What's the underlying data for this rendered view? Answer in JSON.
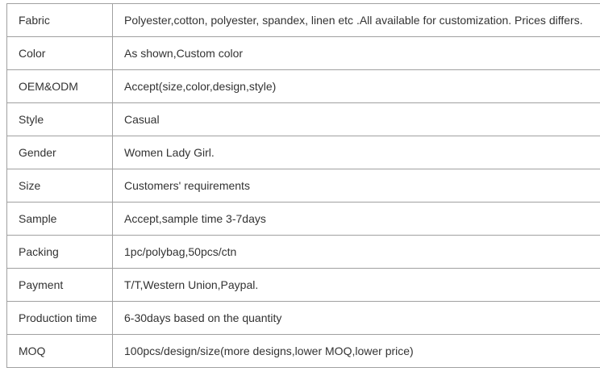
{
  "rows": [
    {
      "label": "Fabric",
      "value": "Polyester,cotton, polyester, spandex, linen etc .All available for customization. Prices differs."
    },
    {
      "label": "Color",
      "value": "As shown,Custom color"
    },
    {
      "label": "OEM&ODM",
      "value": "Accept(size,color,design,style)"
    },
    {
      "label": "Style",
      "value": "Casual"
    },
    {
      "label": "Gender",
      "value": "Women Lady Girl."
    },
    {
      "label": "Size",
      "value": "Customers' requirements"
    },
    {
      "label": "Sample",
      "value": "Accept,sample time 3-7days"
    },
    {
      "label": "Packing",
      "value": "1pc/polybag,50pcs/ctn"
    },
    {
      "label": "Payment",
      "value": "T/T,Western Union,Paypal."
    },
    {
      "label": "Production time",
      "value": "6-30days based on the quantity"
    },
    {
      "label": "MOQ",
      "value": "100pcs/design/size(more designs,lower MOQ,lower price)"
    }
  ]
}
